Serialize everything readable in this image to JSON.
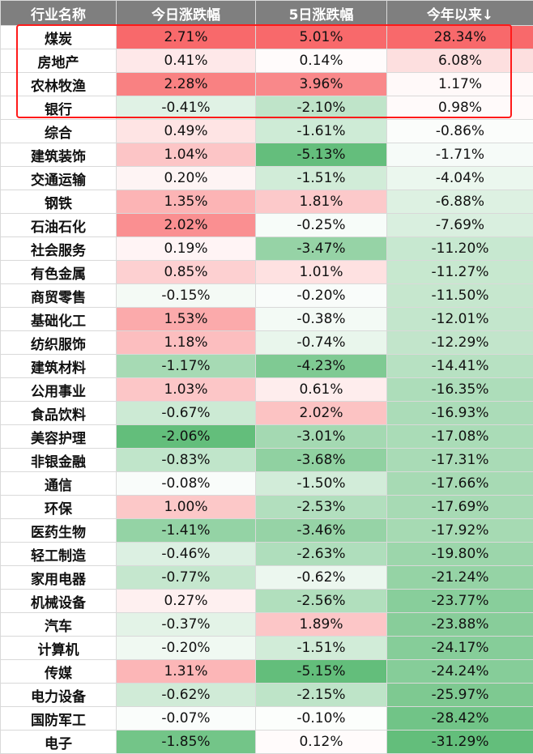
{
  "chart_data": {
    "type": "table",
    "columns": [
      "行业名称",
      "今日涨跌幅",
      "5日涨跌幅",
      "今年以来↓"
    ],
    "rows": [
      {
        "name": "煤炭",
        "today": 2.71,
        "five_day": 5.01,
        "ytd": 28.34
      },
      {
        "name": "房地产",
        "today": 0.41,
        "five_day": 0.14,
        "ytd": 6.08
      },
      {
        "name": "农林牧渔",
        "today": 2.28,
        "five_day": 3.96,
        "ytd": 1.17
      },
      {
        "name": "银行",
        "today": -0.41,
        "five_day": -2.1,
        "ytd": 0.98
      },
      {
        "name": "综合",
        "today": 0.49,
        "five_day": -1.61,
        "ytd": -0.86
      },
      {
        "name": "建筑装饰",
        "today": 1.04,
        "five_day": -5.13,
        "ytd": -1.71
      },
      {
        "name": "交通运输",
        "today": 0.2,
        "five_day": -1.51,
        "ytd": -4.04
      },
      {
        "name": "钢铁",
        "today": 1.35,
        "five_day": 1.81,
        "ytd": -6.88
      },
      {
        "name": "石油石化",
        "today": 2.02,
        "five_day": -0.25,
        "ytd": -7.69
      },
      {
        "name": "社会服务",
        "today": 0.19,
        "five_day": -3.47,
        "ytd": -11.2
      },
      {
        "name": "有色金属",
        "today": 0.85,
        "five_day": 1.01,
        "ytd": -11.27
      },
      {
        "name": "商贸零售",
        "today": -0.15,
        "five_day": -0.2,
        "ytd": -11.5
      },
      {
        "name": "基础化工",
        "today": 1.53,
        "five_day": -0.38,
        "ytd": -12.01
      },
      {
        "name": "纺织服饰",
        "today": 1.18,
        "five_day": -0.74,
        "ytd": -12.29
      },
      {
        "name": "建筑材料",
        "today": -1.17,
        "five_day": -4.23,
        "ytd": -14.41
      },
      {
        "name": "公用事业",
        "today": 1.03,
        "five_day": 0.61,
        "ytd": -16.35
      },
      {
        "name": "食品饮料",
        "today": -0.67,
        "five_day": 2.02,
        "ytd": -16.93
      },
      {
        "name": "美容护理",
        "today": -2.06,
        "five_day": -3.01,
        "ytd": -17.08
      },
      {
        "name": "非银金融",
        "today": -0.83,
        "five_day": -3.68,
        "ytd": -17.31
      },
      {
        "name": "通信",
        "today": -0.08,
        "five_day": -1.5,
        "ytd": -17.66
      },
      {
        "name": "环保",
        "today": 1.0,
        "five_day": -2.53,
        "ytd": -17.69
      },
      {
        "name": "医药生物",
        "today": -1.41,
        "five_day": -3.46,
        "ytd": -17.92
      },
      {
        "name": "轻工制造",
        "today": -0.46,
        "five_day": -2.63,
        "ytd": -19.8
      },
      {
        "name": "家用电器",
        "today": -0.77,
        "five_day": -0.62,
        "ytd": -21.24
      },
      {
        "name": "机械设备",
        "today": 0.27,
        "five_day": -2.56,
        "ytd": -23.77
      },
      {
        "name": "汽车",
        "today": -0.37,
        "five_day": 1.89,
        "ytd": -23.88
      },
      {
        "name": "计算机",
        "today": -0.2,
        "five_day": -1.51,
        "ytd": -24.17
      },
      {
        "name": "传媒",
        "today": 1.31,
        "five_day": -5.15,
        "ytd": -24.24
      },
      {
        "name": "电力设备",
        "today": -0.62,
        "five_day": -2.15,
        "ytd": -25.97
      },
      {
        "name": "国防军工",
        "today": -0.07,
        "five_day": -0.1,
        "ytd": -28.42
      },
      {
        "name": "电子",
        "today": -1.85,
        "five_day": 0.12,
        "ytd": -31.29
      }
    ],
    "highlighted_rows": [
      "煤炭",
      "房地产",
      "农林牧渔",
      "银行"
    ]
  },
  "colors": {
    "header_bg": "#7f7f7f",
    "positive": "#f8696b",
    "negative": "#63be7b",
    "neutral": "#ffffff",
    "highlight_border": "#ff1a1a"
  }
}
